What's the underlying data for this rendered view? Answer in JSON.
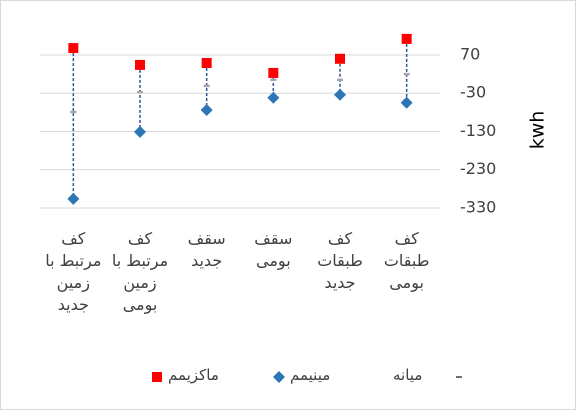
{
  "chart_data": {
    "type": "hilo",
    "categories": [
      "کف مرتبط با زمین جدید",
      "کف مرتبط با زمین بومی",
      "سقف جدید",
      "سقف بومی",
      "کف طبقات جدید",
      "کف طبقات بومی"
    ],
    "series": [
      {
        "name": "ماکزیمم",
        "color": "#ff0000",
        "values": [
          88,
          44,
          49,
          23,
          60,
          112
        ]
      },
      {
        "name": "مینیمم",
        "color": "#2e75b6",
        "values": [
          -306,
          -131,
          -74,
          -42,
          -34,
          -55
        ]
      },
      {
        "name": "میانه",
        "color": "#a6a6a6",
        "values": [
          -79,
          -27,
          -11,
          5,
          5,
          20
        ]
      }
    ],
    "line_color": "#2f5597",
    "ylabel": "kwh",
    "ylim": [
      -330,
      130
    ],
    "yticks": [
      70,
      -30,
      -130,
      -230,
      -330
    ],
    "grid": true
  }
}
